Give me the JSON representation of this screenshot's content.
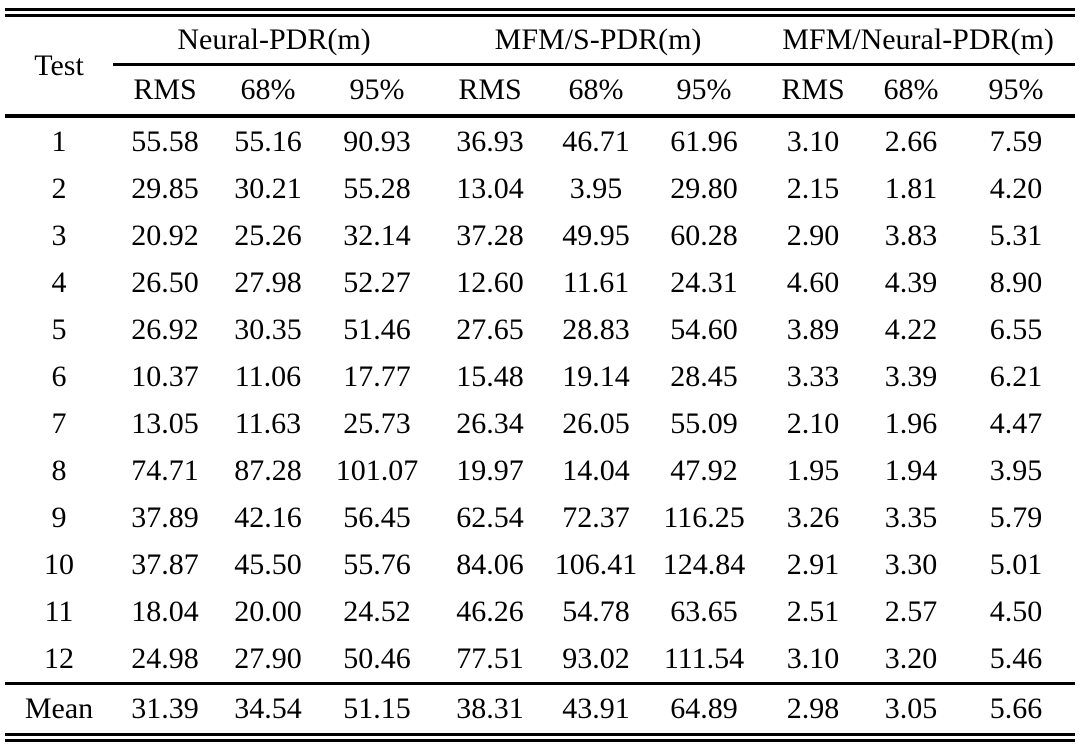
{
  "colors": {
    "text": "#000000",
    "background": "#ffffff",
    "rule": "#000000"
  },
  "table": {
    "corner_label": "Test",
    "mean_label": "Mean",
    "groups": [
      {
        "label": "Neural-PDR(m)",
        "subcols": [
          "RMS",
          "68%",
          "95%"
        ]
      },
      {
        "label": "MFM/S-PDR(m)",
        "subcols": [
          "RMS",
          "68%",
          "95%"
        ]
      },
      {
        "label": "MFM/Neural-PDR(m)",
        "subcols": [
          "RMS",
          "68%",
          "95%"
        ]
      }
    ],
    "bold_value_column": 6,
    "rows": [
      {
        "test": "1",
        "values": [
          "55.58",
          "55.16",
          "90.93",
          "36.93",
          "46.71",
          "61.96",
          "3.10",
          "2.66",
          "7.59"
        ]
      },
      {
        "test": "2",
        "values": [
          "29.85",
          "30.21",
          "55.28",
          "13.04",
          "3.95",
          "29.80",
          "2.15",
          "1.81",
          "4.20"
        ]
      },
      {
        "test": "3",
        "values": [
          "20.92",
          "25.26",
          "32.14",
          "37.28",
          "49.95",
          "60.28",
          "2.90",
          "3.83",
          "5.31"
        ]
      },
      {
        "test": "4",
        "values": [
          "26.50",
          "27.98",
          "52.27",
          "12.60",
          "11.61",
          "24.31",
          "4.60",
          "4.39",
          "8.90"
        ]
      },
      {
        "test": "5",
        "values": [
          "26.92",
          "30.35",
          "51.46",
          "27.65",
          "28.83",
          "54.60",
          "3.89",
          "4.22",
          "6.55"
        ]
      },
      {
        "test": "6",
        "values": [
          "10.37",
          "11.06",
          "17.77",
          "15.48",
          "19.14",
          "28.45",
          "3.33",
          "3.39",
          "6.21"
        ]
      },
      {
        "test": "7",
        "values": [
          "13.05",
          "11.63",
          "25.73",
          "26.34",
          "26.05",
          "55.09",
          "2.10",
          "1.96",
          "4.47"
        ]
      },
      {
        "test": "8",
        "values": [
          "74.71",
          "87.28",
          "101.07",
          "19.97",
          "14.04",
          "47.92",
          "1.95",
          "1.94",
          "3.95"
        ]
      },
      {
        "test": "9",
        "values": [
          "37.89",
          "42.16",
          "56.45",
          "62.54",
          "72.37",
          "116.25",
          "3.26",
          "3.35",
          "5.79"
        ]
      },
      {
        "test": "10",
        "values": [
          "37.87",
          "45.50",
          "55.76",
          "84.06",
          "106.41",
          "124.84",
          "2.91",
          "3.30",
          "5.01"
        ]
      },
      {
        "test": "11",
        "values": [
          "18.04",
          "20.00",
          "24.52",
          "46.26",
          "54.78",
          "63.65",
          "2.51",
          "2.57",
          "4.50"
        ]
      },
      {
        "test": "12",
        "values": [
          "24.98",
          "27.90",
          "50.46",
          "77.51",
          "93.02",
          "111.54",
          "3.10",
          "3.20",
          "5.46"
        ]
      },
      {
        "test": "Mean",
        "values": [
          "31.39",
          "34.54",
          "51.15",
          "38.31",
          "43.91",
          "64.89",
          "2.98",
          "3.05",
          "5.66"
        ]
      }
    ]
  }
}
